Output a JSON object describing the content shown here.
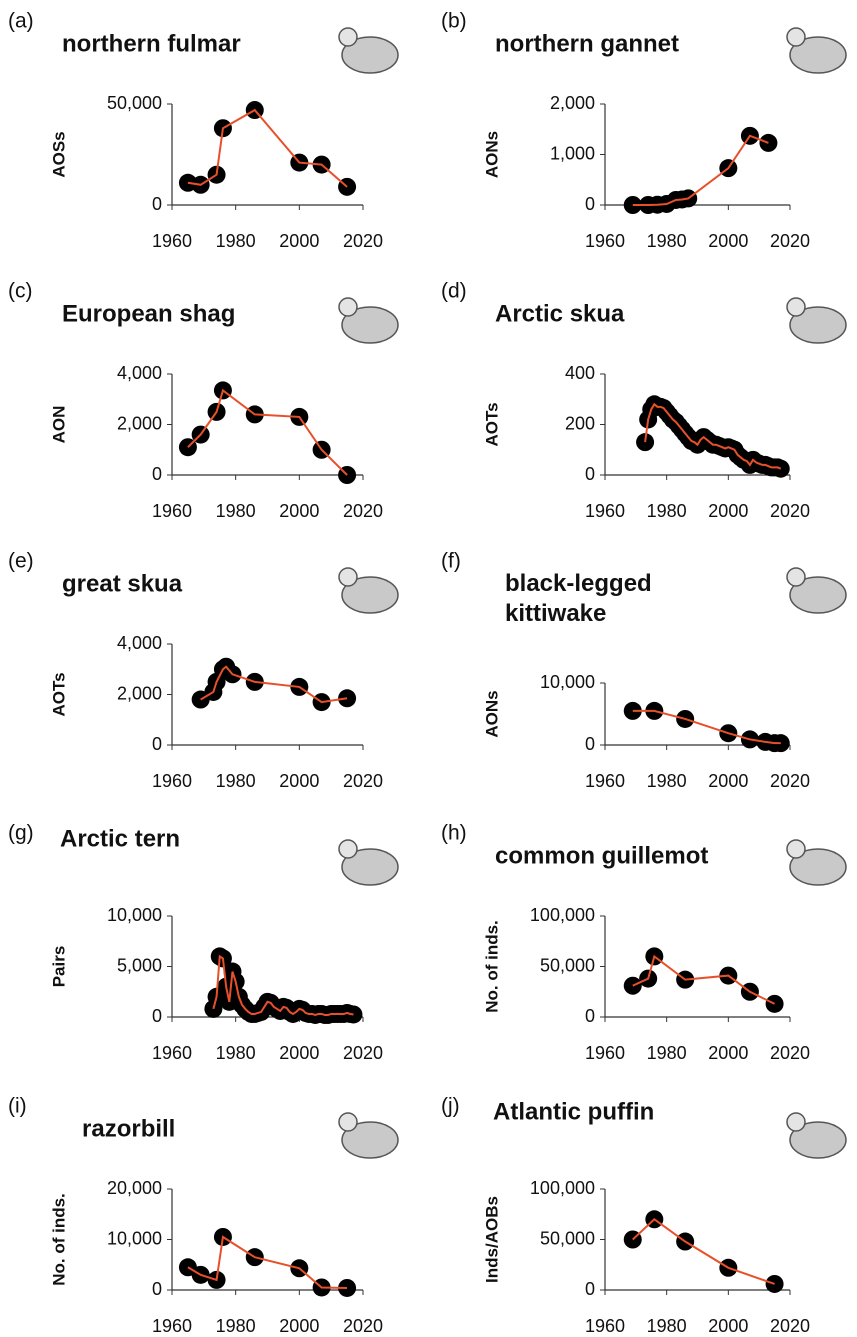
{
  "chart_data": [
    {
      "type": "line",
      "panel": "(a)",
      "title": "northern fulmar",
      "ylabel": "AOSs",
      "line_color": "#e8502a",
      "marker_color": "#000000",
      "x": [
        1965,
        1969,
        1974,
        1976,
        1986,
        2000,
        2007,
        2015
      ],
      "values": [
        11000,
        10000,
        15000,
        38000,
        47000,
        21000,
        20000,
        9000
      ],
      "xlim": [
        1960,
        2020
      ],
      "xticks": [
        1960,
        1980,
        2000,
        2020
      ],
      "ylim": [
        0,
        50000
      ],
      "yticks": [
        0,
        {
          "value": 50000,
          "label": "50,000"
        }
      ]
    },
    {
      "type": "line",
      "panel": "(b)",
      "title": "northern gannet",
      "ylabel": "AONs",
      "line_color": "#e8502a",
      "marker_color": "#000000",
      "x": [
        1969,
        1974,
        1977,
        1980,
        1983,
        1985,
        1987,
        2000,
        2007,
        2013
      ],
      "values": [
        0,
        0,
        5,
        20,
        100,
        110,
        130,
        730,
        1370,
        1230
      ],
      "xlim": [
        1960,
        2020
      ],
      "xticks": [
        1960,
        1980,
        2000,
        2020
      ],
      "ylim": [
        0,
        2000
      ],
      "yticks": [
        0,
        {
          "value": 1000,
          "label": "1,000"
        },
        {
          "value": 2000,
          "label": "2,000"
        }
      ]
    },
    {
      "type": "line",
      "panel": "(c)",
      "title": "European shag",
      "ylabel": "AON",
      "line_color": "#e8502a",
      "marker_color": "#000000",
      "x": [
        1965,
        1969,
        1974,
        1976,
        1986,
        2000,
        2007,
        2015
      ],
      "values": [
        1100,
        1600,
        2500,
        3350,
        2400,
        2300,
        1000,
        0
      ],
      "xlim": [
        1960,
        2020
      ],
      "xticks": [
        1960,
        1980,
        2000,
        2020
      ],
      "ylim": [
        0,
        4000
      ],
      "yticks": [
        0,
        {
          "value": 2000,
          "label": "2,000"
        },
        {
          "value": 4000,
          "label": "4,000"
        }
      ]
    },
    {
      "type": "line",
      "panel": "(d)",
      "title": "Arctic skua",
      "ylabel": "AOTs",
      "line_color": "#e8502a",
      "marker_color": "#000000",
      "x": [
        1973,
        1974,
        1975,
        1976,
        1977,
        1978,
        1979,
        1980,
        1981,
        1982,
        1983,
        1984,
        1985,
        1986,
        1987,
        1988,
        1989,
        1990,
        1991,
        1992,
        1993,
        1994,
        1995,
        1996,
        1997,
        1998,
        1999,
        2000,
        2001,
        2002,
        2003,
        2004,
        2005,
        2006,
        2007,
        2008,
        2009,
        2010,
        2011,
        2012,
        2013,
        2014,
        2015,
        2016,
        2017
      ],
      "values": [
        130,
        220,
        260,
        280,
        270,
        270,
        265,
        250,
        235,
        220,
        210,
        195,
        180,
        165,
        150,
        135,
        130,
        120,
        140,
        150,
        140,
        130,
        120,
        120,
        115,
        110,
        105,
        110,
        105,
        100,
        80,
        70,
        60,
        55,
        40,
        60,
        50,
        45,
        40,
        40,
        35,
        30,
        30,
        30,
        25
      ],
      "xlim": [
        1960,
        2020
      ],
      "xticks": [
        1960,
        1980,
        2000,
        2020
      ],
      "ylim": [
        0,
        400
      ],
      "yticks": [
        0,
        200,
        400
      ]
    },
    {
      "type": "line",
      "panel": "(e)",
      "title": "great skua",
      "ylabel": "AOTs",
      "line_color": "#e8502a",
      "marker_color": "#000000",
      "x": [
        1969,
        1973,
        1974,
        1976,
        1977,
        1979,
        1986,
        2000,
        2007,
        2015
      ],
      "values": [
        1800,
        2100,
        2500,
        3000,
        3100,
        2800,
        2500,
        2300,
        1700,
        1850
      ],
      "xlim": [
        1960,
        2020
      ],
      "xticks": [
        1960,
        1980,
        2000,
        2020
      ],
      "ylim": [
        0,
        4000
      ],
      "yticks": [
        0,
        {
          "value": 2000,
          "label": "2,000"
        },
        {
          "value": 4000,
          "label": "4,000"
        }
      ]
    },
    {
      "type": "line",
      "panel": "(f)",
      "title": "black-legged kittiwake",
      "ylabel": "AONs",
      "line_color": "#e8502a",
      "marker_color": "#000000",
      "x": [
        1969,
        1976,
        1986,
        2000,
        2007,
        2012,
        2015,
        2017
      ],
      "values": [
        5500,
        5500,
        4200,
        1900,
        900,
        500,
        300,
        300
      ],
      "xlim": [
        1960,
        2020
      ],
      "xticks": [
        1960,
        1980,
        2000,
        2020
      ],
      "ylim": [
        0,
        10000
      ],
      "yticks": [
        0,
        {
          "value": 10000,
          "label": "10,000"
        }
      ]
    },
    {
      "type": "line",
      "panel": "(g)",
      "title": "Arctic tern",
      "ylabel": "Pairs",
      "line_color": "#e8502a",
      "marker_color": "#000000",
      "x": [
        1973,
        1974,
        1975,
        1976,
        1977,
        1978,
        1979,
        1980,
        1981,
        1982,
        1983,
        1984,
        1985,
        1986,
        1987,
        1988,
        1989,
        1990,
        1991,
        1992,
        1993,
        1994,
        1995,
        1996,
        1997,
        1998,
        1999,
        2000,
        2001,
        2002,
        2003,
        2004,
        2005,
        2006,
        2007,
        2008,
        2009,
        2010,
        2011,
        2012,
        2013,
        2014,
        2015,
        2016,
        2017
      ],
      "values": [
        800,
        2000,
        6000,
        5800,
        3000,
        1500,
        4500,
        3500,
        2000,
        1200,
        800,
        500,
        300,
        300,
        400,
        500,
        1000,
        1500,
        1400,
        1000,
        800,
        600,
        1000,
        900,
        500,
        300,
        500,
        800,
        700,
        400,
        300,
        300,
        200,
        300,
        300,
        200,
        200,
        300,
        300,
        300,
        300,
        300,
        400,
        300,
        250
      ],
      "xlim": [
        1960,
        2020
      ],
      "xticks": [
        1960,
        1980,
        2000,
        2020
      ],
      "ylim": [
        0,
        10000
      ],
      "yticks": [
        0,
        {
          "value": 5000,
          "label": "5,000"
        },
        {
          "value": 10000,
          "label": "10,000"
        }
      ]
    },
    {
      "type": "line",
      "panel": "(h)",
      "title": "common guillemot",
      "ylabel": "No. of inds.",
      "line_color": "#e8502a",
      "marker_color": "#000000",
      "x": [
        1969,
        1974,
        1976,
        1986,
        2000,
        2007,
        2015
      ],
      "values": [
        31000,
        38000,
        60000,
        37000,
        41000,
        25000,
        13000
      ],
      "xlim": [
        1960,
        2020
      ],
      "xticks": [
        1960,
        1980,
        2000,
        2020
      ],
      "ylim": [
        0,
        100000
      ],
      "yticks": [
        0,
        {
          "value": 50000,
          "label": "50,000"
        },
        {
          "value": 100000,
          "label": "100,000"
        }
      ]
    },
    {
      "type": "line",
      "panel": "(i)",
      "title": "razorbill",
      "ylabel": "No. of inds.",
      "line_color": "#e8502a",
      "marker_color": "#000000",
      "x": [
        1965,
        1969,
        1974,
        1976,
        1986,
        2000,
        2007,
        2015
      ],
      "values": [
        4500,
        3000,
        2000,
        10500,
        6500,
        4300,
        500,
        400
      ],
      "xlim": [
        1960,
        2020
      ],
      "xticks": [
        1960,
        1980,
        2000,
        2020
      ],
      "ylim": [
        0,
        20000
      ],
      "yticks": [
        0,
        {
          "value": 10000,
          "label": "10,000"
        },
        {
          "value": 20000,
          "label": "20,000"
        }
      ]
    },
    {
      "type": "line",
      "panel": "(j)",
      "title": "Atlantic puffin",
      "ylabel": "Inds/AOBs",
      "line_color": "#e8502a",
      "marker_color": "#000000",
      "x": [
        1969,
        1976,
        1986,
        2000,
        2015
      ],
      "values": [
        50000,
        70000,
        48000,
        22000,
        6000
      ],
      "xlim": [
        1960,
        2020
      ],
      "xticks": [
        1960,
        1980,
        2000,
        2020
      ],
      "ylim": [
        0,
        100000
      ],
      "yticks": [
        0,
        {
          "value": 50000,
          "label": "50,000"
        },
        {
          "value": 100000,
          "label": "100,000"
        }
      ]
    }
  ]
}
